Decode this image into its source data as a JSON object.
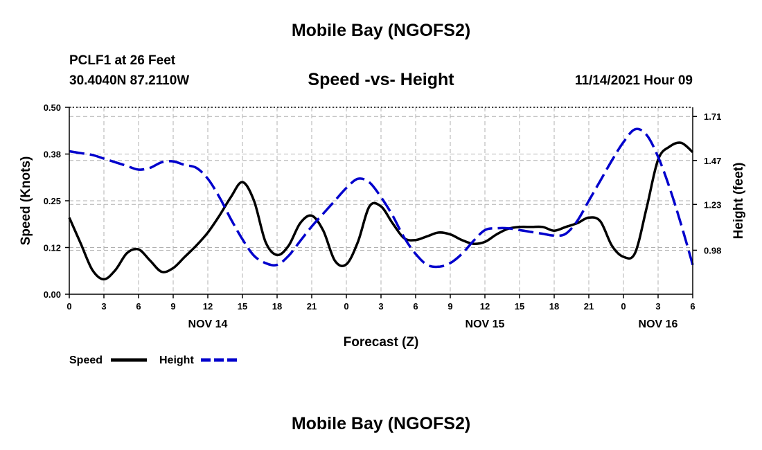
{
  "header": {
    "title": "Mobile Bay (NGOFS2)",
    "station": "PCLF1 at 26 Feet",
    "coordinates": "30.4040N  87.2110W",
    "datetime": "11/14/2021 Hour 09",
    "footer_title": "Mobile Bay (NGOFS2)"
  },
  "chart_data": {
    "type": "line",
    "title": "Speed -vs- Height",
    "xlabel": "Forecast (Z)",
    "ylabel": "Speed (Knots)",
    "y2label": "Height (feet)",
    "x_unit": "hours from 2021-11-14 00Z",
    "xlim": [
      0,
      54
    ],
    "x_ticks": [
      0,
      3,
      6,
      9,
      12,
      15,
      18,
      21,
      24,
      27,
      30,
      33,
      36,
      39,
      42,
      45,
      48,
      51,
      54
    ],
    "x_tick_labels": [
      "0",
      "3",
      "6",
      "9",
      "12",
      "15",
      "18",
      "21",
      "0",
      "3",
      "6",
      "9",
      "12",
      "15",
      "18",
      "21",
      "0",
      "3",
      "6"
    ],
    "day_labels": [
      {
        "text": "NOV 14",
        "x": 12
      },
      {
        "text": "NOV 15",
        "x": 36
      },
      {
        "text": "NOV 16",
        "x": 51
      }
    ],
    "ylim": [
      0,
      0.5
    ],
    "y_ticks": [
      0,
      0.125,
      0.25,
      0.375,
      0.5
    ],
    "y_tick_labels": [
      "0.00",
      "0.12",
      "0.25",
      "0.38",
      "0.50"
    ],
    "y2lim": [
      0.74,
      1.76
    ],
    "y2_ticks": [
      0.98,
      1.23,
      1.47,
      1.71
    ],
    "y2_tick_labels": [
      "0.98",
      "1.23",
      "1.47",
      "1.71"
    ],
    "grid": true,
    "series": [
      {
        "name": "Speed",
        "axis": "left",
        "color": "#000000",
        "style": "solid",
        "x": [
          0,
          1,
          2,
          3,
          4,
          5,
          6,
          7,
          8,
          9,
          10,
          11,
          12,
          13,
          14,
          15,
          16,
          17,
          18,
          19,
          20,
          21,
          22,
          23,
          24,
          25,
          26,
          27,
          28,
          29,
          30,
          31,
          32,
          33,
          34,
          35,
          36,
          37,
          38,
          39,
          40,
          41,
          42,
          43,
          44,
          45,
          46,
          47,
          48,
          49,
          50,
          51,
          52,
          53,
          54
        ],
        "values": [
          0.205,
          0.135,
          0.065,
          0.04,
          0.065,
          0.11,
          0.12,
          0.09,
          0.06,
          0.07,
          0.1,
          0.13,
          0.165,
          0.21,
          0.26,
          0.3,
          0.25,
          0.14,
          0.105,
          0.13,
          0.19,
          0.21,
          0.17,
          0.09,
          0.08,
          0.14,
          0.235,
          0.235,
          0.19,
          0.15,
          0.145,
          0.155,
          0.165,
          0.16,
          0.145,
          0.135,
          0.14,
          0.16,
          0.175,
          0.18,
          0.18,
          0.18,
          0.17,
          0.18,
          0.19,
          0.205,
          0.195,
          0.13,
          0.1,
          0.11,
          0.23,
          0.36,
          0.395,
          0.405,
          0.38
        ]
      },
      {
        "name": "Height",
        "axis": "right",
        "color": "#0000cc",
        "style": "dashed",
        "x": [
          0,
          1,
          2,
          3,
          4,
          5,
          6,
          7,
          8,
          9,
          10,
          11,
          12,
          13,
          14,
          15,
          16,
          17,
          18,
          19,
          20,
          21,
          22,
          23,
          24,
          25,
          26,
          27,
          28,
          29,
          30,
          31,
          32,
          33,
          34,
          35,
          36,
          37,
          38,
          39,
          40,
          41,
          42,
          43,
          44,
          45,
          46,
          47,
          48,
          49,
          50,
          51,
          52,
          53,
          54
        ],
        "values": [
          1.52,
          1.51,
          1.5,
          1.48,
          1.46,
          1.44,
          1.42,
          1.43,
          1.46,
          1.465,
          1.445,
          1.43,
          1.37,
          1.27,
          1.15,
          1.04,
          0.95,
          0.91,
          0.9,
          0.95,
          1.03,
          1.11,
          1.18,
          1.25,
          1.32,
          1.37,
          1.35,
          1.27,
          1.17,
          1.05,
          0.96,
          0.9,
          0.89,
          0.91,
          0.96,
          1.03,
          1.09,
          1.1,
          1.1,
          1.09,
          1.08,
          1.07,
          1.06,
          1.07,
          1.14,
          1.25,
          1.36,
          1.47,
          1.57,
          1.64,
          1.61,
          1.49,
          1.32,
          1.12,
          0.9
        ]
      }
    ],
    "legend": {
      "position": "bottom-left",
      "entries": [
        {
          "label": "Speed",
          "color": "#000000",
          "style": "solid"
        },
        {
          "label": "Height",
          "color": "#0000cc",
          "style": "dashed"
        }
      ]
    }
  }
}
